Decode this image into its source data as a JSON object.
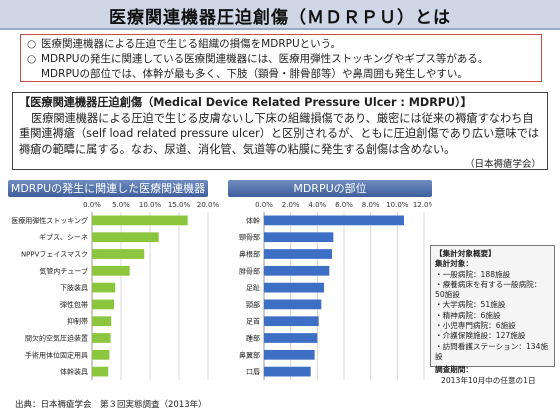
{
  "title": "医療関連機器圧迫創傷（ＭＤＲＰＵ）とは",
  "bullets": [
    {
      "mark": "○",
      "text": "医療関連機器による圧迫で生じる組織の損傷をMDRPUという。"
    },
    {
      "mark": "○",
      "text": "MDRPUの発生に関連している医療関連機器には、医療用弾性ストッキングやギプス等がある。"
    },
    {
      "mark": "",
      "text": "MDRPUの部位では、体幹が最も多く、下肢（頸骨・腓骨部等）や鼻周囲も発生しやすい。"
    }
  ],
  "definition": {
    "heading": "【医療関連機器圧迫創傷（Medical Device Related Pressure Ulcer : MDRPU）】",
    "body": "医療関連機器による圧迫で生じる皮膚ないし下床の組織損傷であり、厳密には従来の褥瘡すなわち自重関連褥瘡（self load related pressure ulcer）と区別されるが、ともに圧迫創傷であり広い意味では褥瘡の範疇に属する。なお、尿道、消化管、気道等の粘膜に発生する創傷は含めない。",
    "source": "（日本褥瘡学会）"
  },
  "section1_title": "MDRPUの発生に関連した医療関連機器",
  "section2_title": "MDRPUの部位",
  "chart_data": [
    {
      "type": "bar",
      "orientation": "horizontal",
      "title": "MDRPUの発生に関連した医療関連機器",
      "xlim": [
        0,
        20
      ],
      "xticks": [
        "0.0%",
        "5.0%",
        "10.0%",
        "15.0%",
        "20.0%"
      ],
      "color": "#8cc63e",
      "categories": [
        "医療用弾性ストッキング",
        "ギプス、シーネ",
        "NPPVフェイスマスク",
        "気管内チューブ",
        "下肢装具",
        "弾性包帯",
        "抑制帯",
        "間欠的空気圧迫装置",
        "手術用体位固定用具",
        "体幹装具"
      ],
      "values": [
        16.5,
        11.5,
        9.0,
        6.5,
        4.0,
        3.8,
        3.3,
        3.2,
        3.0,
        2.8
      ]
    },
    {
      "type": "bar",
      "orientation": "horizontal",
      "title": "MDRPUの部位",
      "xlim": [
        0,
        12
      ],
      "xticks": [
        "0.0%",
        "2.0%",
        "4.0%",
        "6.0%",
        "8.0%",
        "10.0%",
        "12.0%"
      ],
      "color": "#3d6fc4",
      "categories": [
        "体幹",
        "頸骨部",
        "鼻根部",
        "腓骨部",
        "足趾",
        "頸部",
        "足首",
        "踵部",
        "鼻翼部",
        "口唇"
      ],
      "values": [
        10.5,
        5.2,
        5.1,
        4.9,
        4.5,
        4.3,
        4.1,
        4.0,
        3.8,
        3.5
      ]
    }
  ],
  "legend": {
    "heading": "【集計対象概要】",
    "count_label": "集計対象：",
    "items": [
      "・一般病院：188施設",
      "・療養病床を有する一般病院：50施設",
      "・大学病院：51施設",
      "・精神病院：6施設",
      "・小児専門病院：6施設",
      "・介護保険施設：127施設",
      "・訪問看護ステーション：134施設"
    ],
    "period_label": "調査期間：",
    "period": "2013年10月中の任意の1日"
  },
  "source_note": "出典：日本褥瘡学会　第３回実態調査（2013年）"
}
